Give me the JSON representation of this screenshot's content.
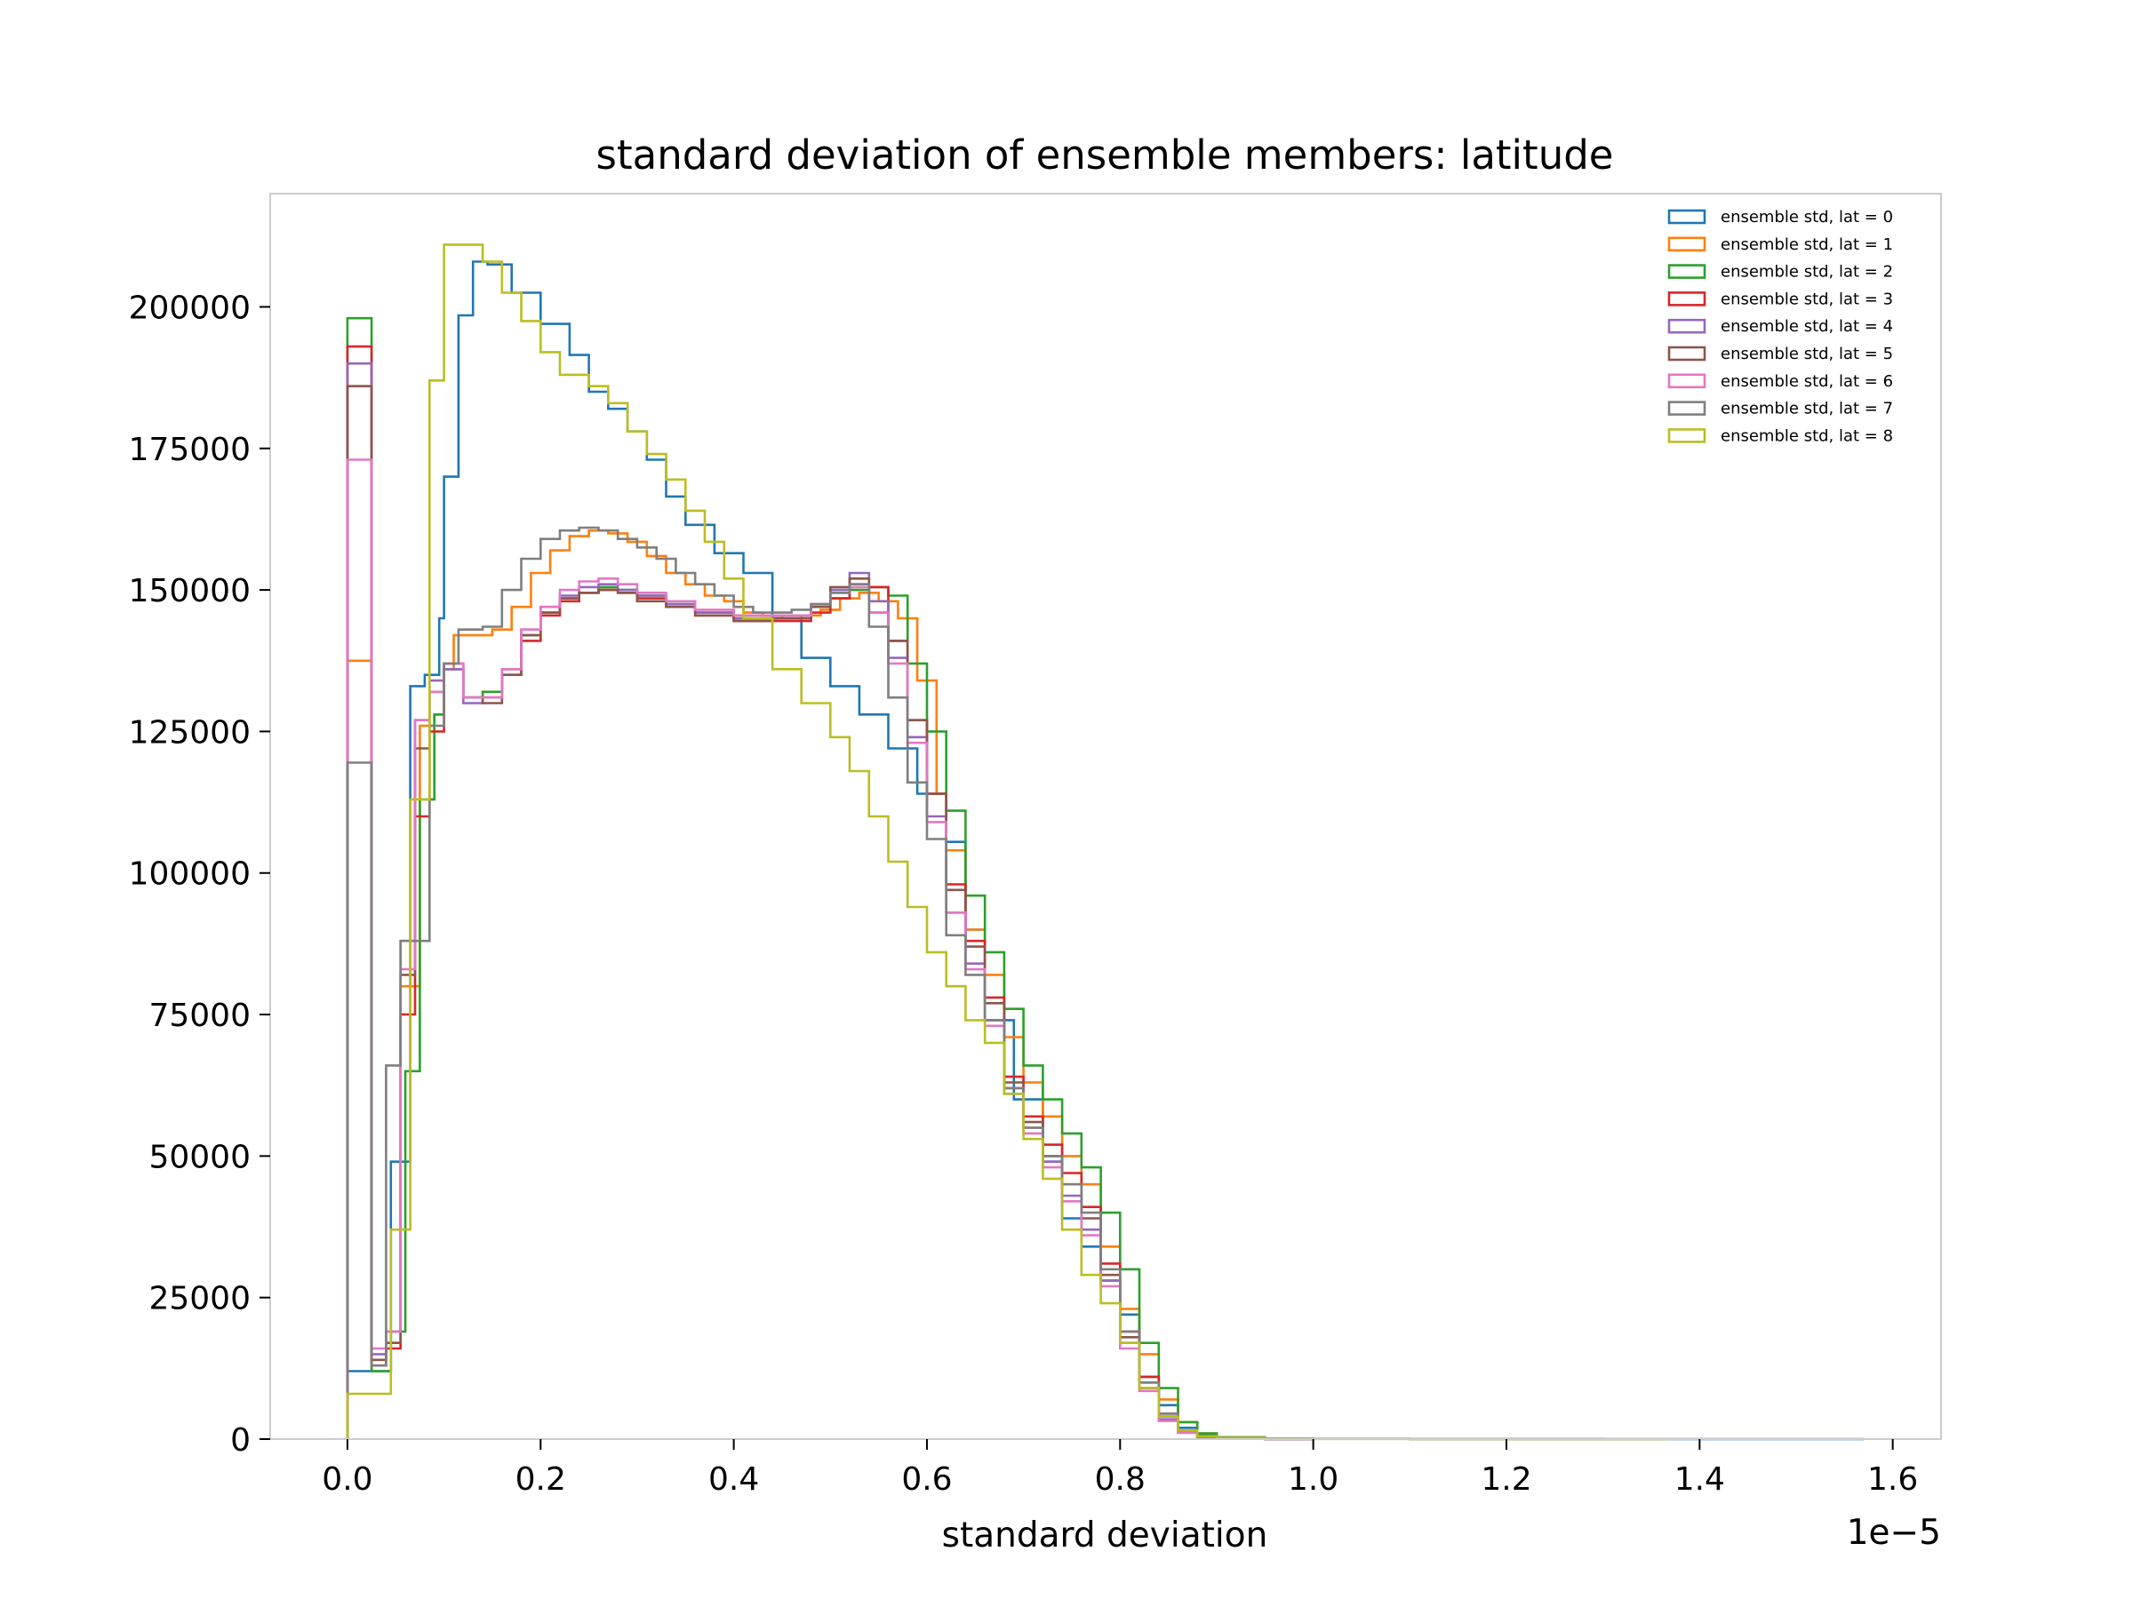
{
  "chart_data": {
    "type": "histogram",
    "title": "standard deviation of ensemble members: latitude",
    "xlabel": "standard deviation",
    "ylabel": "",
    "x_offset_label": "1e−5",
    "xlim": [
      -0.08,
      1.65
    ],
    "ylim": [
      0,
      220000
    ],
    "xticks": [
      0.0,
      0.2,
      0.4,
      0.6,
      0.8,
      1.0,
      1.2,
      1.4,
      1.6
    ],
    "xtick_labels": [
      "0.0",
      "0.2",
      "0.4",
      "0.6",
      "0.8",
      "1.0",
      "1.2",
      "1.4",
      "1.6"
    ],
    "yticks": [
      0,
      25000,
      50000,
      75000,
      100000,
      125000,
      150000,
      175000,
      200000
    ],
    "ytick_labels": [
      "0",
      "25000",
      "50000",
      "75000",
      "100000",
      "125000",
      "150000",
      "175000",
      "200000"
    ],
    "grid": false,
    "legend_position": "top-right",
    "series": [
      {
        "name": "ensemble std, lat = 0",
        "color": "#1f77b4",
        "x": [
          0.0,
          0.03,
          0.045,
          0.065,
          0.08,
          0.095,
          0.1,
          0.115,
          0.13,
          0.145,
          0.17,
          0.2,
          0.23,
          0.25,
          0.27,
          0.29,
          0.31,
          0.33,
          0.35,
          0.38,
          0.41,
          0.44,
          0.47,
          0.5,
          0.53,
          0.56,
          0.59,
          0.62,
          0.64,
          0.66,
          0.69,
          0.72,
          0.74,
          0.76,
          0.78,
          0.8,
          0.82,
          0.84,
          0.86,
          0.88,
          0.9,
          0.95,
          1.0,
          1.1,
          1.2,
          1.3,
          1.4,
          1.57
        ],
        "values": [
          12000,
          12000,
          49000,
          133000,
          135000,
          145000,
          170000,
          198500,
          208000,
          207500,
          202500,
          197000,
          191500,
          185000,
          182000,
          178000,
          173000,
          166500,
          161500,
          156500,
          153000,
          145000,
          138000,
          133000,
          128000,
          122000,
          114000,
          105500,
          90000,
          74000,
          60000,
          49000,
          39000,
          34000,
          28000,
          22000,
          11000,
          6000,
          2000,
          800,
          300,
          100,
          50,
          20,
          10,
          5,
          2
        ],
        "closed": 1.57
      },
      {
        "name": "ensemble std, lat = 1",
        "color": "#ff7f0e",
        "x": [
          0.0,
          0.025,
          0.04,
          0.055,
          0.075,
          0.09,
          0.1,
          0.11,
          0.15,
          0.17,
          0.19,
          0.21,
          0.23,
          0.25,
          0.27,
          0.29,
          0.31,
          0.33,
          0.35,
          0.37,
          0.39,
          0.41,
          0.43,
          0.45,
          0.47,
          0.49,
          0.51,
          0.53,
          0.55,
          0.57,
          0.59,
          0.61,
          0.62,
          0.64,
          0.66,
          0.68,
          0.7,
          0.72,
          0.74,
          0.76,
          0.78,
          0.8,
          0.82,
          0.84,
          0.86,
          0.88,
          0.9,
          0.95
        ],
        "values": [
          137500,
          14000,
          17000,
          80000,
          126000,
          128000,
          136000,
          142000,
          143000,
          147000,
          153000,
          157000,
          159500,
          160500,
          160000,
          158500,
          156000,
          153000,
          151000,
          149000,
          148000,
          146000,
          145500,
          145000,
          145500,
          146500,
          148500,
          149500,
          148000,
          145000,
          134000,
          114000,
          104000,
          90000,
          82000,
          71000,
          63000,
          57000,
          50000,
          45000,
          34000,
          23000,
          15000,
          7000,
          3000,
          1000,
          300,
          50
        ],
        "closed": 1.0
      },
      {
        "name": "ensemble std, lat = 2",
        "color": "#2ca02c",
        "x": [
          0.0,
          0.025,
          0.045,
          0.06,
          0.075,
          0.09,
          0.1,
          0.12,
          0.14,
          0.16,
          0.18,
          0.2,
          0.22,
          0.24,
          0.26,
          0.28,
          0.3,
          0.33,
          0.36,
          0.4,
          0.44,
          0.48,
          0.5,
          0.52,
          0.54,
          0.56,
          0.58,
          0.6,
          0.62,
          0.64,
          0.66,
          0.68,
          0.7,
          0.72,
          0.74,
          0.76,
          0.78,
          0.8,
          0.82,
          0.84,
          0.86,
          0.88,
          0.9,
          0.95
        ],
        "values": [
          198000,
          12000,
          19000,
          65000,
          113000,
          128000,
          136000,
          131000,
          132000,
          136000,
          142000,
          146000,
          148500,
          149500,
          150500,
          150000,
          149000,
          147500,
          146000,
          145000,
          145500,
          147000,
          148500,
          150000,
          150500,
          149000,
          137000,
          125000,
          111000,
          96000,
          86000,
          76000,
          66000,
          60000,
          54000,
          48000,
          40000,
          30000,
          17000,
          9000,
          3000,
          1000,
          300,
          50
        ],
        "closed": 1.0
      },
      {
        "name": "ensemble std, lat = 3",
        "color": "#d62728",
        "x": [
          0.0,
          0.025,
          0.04,
          0.055,
          0.07,
          0.085,
          0.1,
          0.12,
          0.14,
          0.16,
          0.18,
          0.2,
          0.22,
          0.24,
          0.26,
          0.28,
          0.3,
          0.33,
          0.36,
          0.4,
          0.44,
          0.48,
          0.5,
          0.52,
          0.54,
          0.56,
          0.58,
          0.6,
          0.62,
          0.64,
          0.66,
          0.68,
          0.7,
          0.72,
          0.74,
          0.76,
          0.78,
          0.8,
          0.82,
          0.84,
          0.86,
          0.88,
          0.9,
          0.95
        ],
        "values": [
          193000,
          13000,
          16000,
          75000,
          110000,
          125000,
          136000,
          131000,
          131000,
          135000,
          141000,
          145500,
          148000,
          149500,
          150000,
          149500,
          148500,
          147000,
          145500,
          144500,
          144500,
          146000,
          148500,
          151000,
          150500,
          141000,
          127000,
          114000,
          98000,
          88000,
          78000,
          64000,
          57000,
          52000,
          47000,
          41000,
          31000,
          19000,
          11000,
          4500,
          1500,
          400,
          100,
          30
        ],
        "closed": 1.0
      },
      {
        "name": "ensemble std, lat = 4",
        "color": "#9467bd",
        "x": [
          0.0,
          0.025,
          0.04,
          0.055,
          0.07,
          0.085,
          0.1,
          0.12,
          0.14,
          0.16,
          0.18,
          0.2,
          0.22,
          0.24,
          0.26,
          0.28,
          0.3,
          0.33,
          0.36,
          0.4,
          0.44,
          0.48,
          0.5,
          0.52,
          0.54,
          0.56,
          0.58,
          0.6,
          0.62,
          0.64,
          0.66,
          0.68,
          0.7,
          0.72,
          0.74,
          0.76,
          0.78,
          0.8,
          0.82,
          0.84,
          0.86,
          0.88,
          0.9,
          0.95
        ],
        "values": [
          190000,
          15000,
          19000,
          88000,
          127000,
          134000,
          136000,
          130000,
          131000,
          136000,
          143000,
          147000,
          149000,
          150500,
          151000,
          150000,
          149000,
          147500,
          146000,
          145000,
          145000,
          147000,
          150000,
          153000,
          148000,
          138000,
          124000,
          110000,
          93000,
          84000,
          74000,
          62000,
          55000,
          49000,
          43000,
          37000,
          28000,
          17000,
          9000,
          3500,
          1200,
          300,
          80,
          20
        ],
        "closed": 1.0
      },
      {
        "name": "ensemble std, lat = 5",
        "color": "#8c564b",
        "x": [
          0.0,
          0.025,
          0.04,
          0.055,
          0.07,
          0.085,
          0.1,
          0.12,
          0.14,
          0.16,
          0.18,
          0.2,
          0.22,
          0.24,
          0.26,
          0.28,
          0.3,
          0.33,
          0.36,
          0.4,
          0.44,
          0.48,
          0.5,
          0.52,
          0.54,
          0.56,
          0.58,
          0.6,
          0.62,
          0.64,
          0.66,
          0.68,
          0.7,
          0.72,
          0.74,
          0.76,
          0.78,
          0.8,
          0.82,
          0.84,
          0.86,
          0.88,
          0.9,
          0.95
        ],
        "values": [
          186000,
          14000,
          17000,
          82000,
          122000,
          132000,
          137000,
          131000,
          130000,
          135000,
          142000,
          146000,
          148500,
          149500,
          150000,
          149500,
          148000,
          147000,
          145500,
          144500,
          145000,
          147000,
          150500,
          152000,
          146000,
          141000,
          127000,
          114000,
          97000,
          87000,
          77000,
          63000,
          56000,
          50000,
          45000,
          39000,
          29000,
          18000,
          10000,
          4000,
          1300,
          350,
          90,
          20
        ],
        "closed": 1.0
      },
      {
        "name": "ensemble std, lat = 6",
        "color": "#e377c2",
        "x": [
          0.0,
          0.025,
          0.04,
          0.055,
          0.07,
          0.085,
          0.1,
          0.12,
          0.14,
          0.16,
          0.18,
          0.2,
          0.22,
          0.24,
          0.26,
          0.28,
          0.3,
          0.33,
          0.36,
          0.4,
          0.44,
          0.48,
          0.5,
          0.52,
          0.54,
          0.56,
          0.58,
          0.6,
          0.62,
          0.64,
          0.66,
          0.68,
          0.7,
          0.72,
          0.74,
          0.76,
          0.78,
          0.8,
          0.82,
          0.84,
          0.86,
          0.88,
          0.9,
          0.95
        ],
        "values": [
          173000,
          16000,
          19000,
          83000,
          127000,
          132000,
          137000,
          131000,
          131000,
          136000,
          143000,
          147000,
          150000,
          151500,
          152000,
          151000,
          149500,
          148000,
          146500,
          145500,
          145500,
          147500,
          149500,
          150500,
          146000,
          137000,
          123000,
          109000,
          93000,
          83000,
          73000,
          61000,
          54000,
          48000,
          42000,
          36000,
          27000,
          16000,
          8500,
          3200,
          1100,
          300,
          80,
          20
        ],
        "closed": 1.0
      },
      {
        "name": "ensemble std, lat = 7",
        "color": "#7f7f7f",
        "x": [
          0.0,
          0.025,
          0.04,
          0.055,
          0.07,
          0.085,
          0.1,
          0.115,
          0.14,
          0.16,
          0.18,
          0.2,
          0.22,
          0.24,
          0.26,
          0.28,
          0.3,
          0.32,
          0.34,
          0.36,
          0.38,
          0.4,
          0.42,
          0.44,
          0.46,
          0.48,
          0.5,
          0.52,
          0.54,
          0.56,
          0.58,
          0.6,
          0.62,
          0.64,
          0.66,
          0.68,
          0.7,
          0.72,
          0.74,
          0.76,
          0.78,
          0.8,
          0.82,
          0.84,
          0.86,
          0.88,
          0.9,
          0.95
        ],
        "values": [
          119500,
          13000,
          66000,
          88000,
          88000,
          126000,
          137000,
          143000,
          143500,
          150000,
          155500,
          159000,
          160500,
          161000,
          160500,
          159000,
          157500,
          155500,
          153000,
          151000,
          149000,
          147000,
          146000,
          146000,
          146500,
          147500,
          149500,
          151000,
          143500,
          131000,
          116000,
          106000,
          89000,
          82000,
          74000,
          62000,
          55000,
          50000,
          45000,
          40000,
          30000,
          19000,
          10000,
          4500,
          1500,
          400,
          100,
          20
        ],
        "closed": 1.0
      },
      {
        "name": "ensemble std, lat = 8",
        "color": "#bcbd22",
        "x": [
          0.0,
          0.03,
          0.045,
          0.065,
          0.085,
          0.1,
          0.115,
          0.14,
          0.16,
          0.18,
          0.2,
          0.22,
          0.25,
          0.27,
          0.29,
          0.31,
          0.33,
          0.35,
          0.37,
          0.39,
          0.41,
          0.44,
          0.47,
          0.5,
          0.52,
          0.54,
          0.56,
          0.58,
          0.6,
          0.62,
          0.64,
          0.66,
          0.68,
          0.7,
          0.72,
          0.74,
          0.76,
          0.78,
          0.8,
          0.82,
          0.84,
          0.86,
          0.88,
          0.9,
          0.95,
          1.0,
          1.1,
          1.2,
          1.3
        ],
        "values": [
          8000,
          8000,
          37000,
          113000,
          187000,
          211000,
          211000,
          208000,
          202500,
          197500,
          192000,
          188000,
          186000,
          183000,
          178000,
          174000,
          169500,
          164000,
          158500,
          152000,
          145000,
          136000,
          130000,
          124000,
          118000,
          110000,
          102000,
          94000,
          86000,
          80000,
          74000,
          70000,
          61000,
          53000,
          46000,
          37000,
          29000,
          24000,
          17000,
          9000,
          4000,
          1500,
          500,
          200,
          80,
          30,
          10,
          5,
          2
        ],
        "closed": 1.37
      }
    ]
  }
}
